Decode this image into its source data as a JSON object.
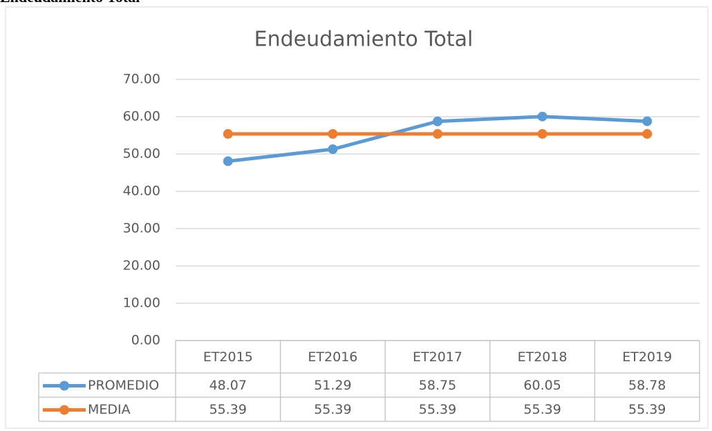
{
  "page_heading": "Endeudamiento Total",
  "chart_data": {
    "type": "line",
    "title": "Endeudamiento Total",
    "categories": [
      "ET2015",
      "ET2016",
      "ET2017",
      "ET2018",
      "ET2019"
    ],
    "series": [
      {
        "name": "PROMEDIO",
        "color": "#5b9bd5",
        "values": [
          48.07,
          51.29,
          58.75,
          60.05,
          58.78
        ]
      },
      {
        "name": "MEDIA",
        "color": "#ed7d31",
        "values": [
          55.39,
          55.39,
          55.39,
          55.39,
          55.39
        ]
      }
    ],
    "ylim": [
      0,
      70
    ],
    "yticks": [
      {
        "value": 0,
        "label": "0.00"
      },
      {
        "value": 10,
        "label": "10.00"
      },
      {
        "value": 20,
        "label": "20.00"
      },
      {
        "value": 30,
        "label": "30.00"
      },
      {
        "value": 40,
        "label": "40.00"
      },
      {
        "value": 50,
        "label": "50.00"
      },
      {
        "value": 60,
        "label": "60.00"
      },
      {
        "value": 70,
        "label": "70.00"
      }
    ],
    "grid": true,
    "data_table": true
  }
}
